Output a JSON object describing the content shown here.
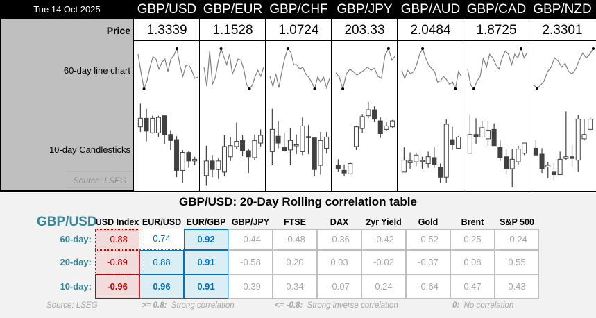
{
  "header": {
    "date": "Tue 14 Oct 2025"
  },
  "row_labels": {
    "price": "Price",
    "line_chart": "60-day line chart",
    "candles": "10-day Candlesticks",
    "source": "Source: LSEG"
  },
  "pairs": [
    {
      "name": "GBP/USD",
      "price": "1.3339",
      "line": [
        86,
        40,
        0,
        20,
        54,
        80,
        74,
        49,
        66,
        74,
        43,
        74,
        83,
        100,
        60,
        31,
        57,
        60,
        46,
        26,
        29
      ],
      "candles": [
        [
          71,
          98,
          65,
          81
        ],
        [
          81,
          92,
          54,
          66
        ],
        [
          64,
          84,
          63,
          81
        ],
        [
          64,
          84,
          59,
          82
        ],
        [
          84,
          84,
          51,
          62
        ],
        [
          62,
          67,
          44,
          55
        ],
        [
          56,
          60,
          12,
          20
        ],
        [
          20,
          44,
          5,
          41
        ],
        [
          41,
          43,
          23,
          31
        ],
        [
          31,
          36,
          26,
          33
        ]
      ]
    },
    {
      "name": "GBP/EUR",
      "price": "1.1528",
      "line": [
        54,
        6,
        94,
        11,
        29,
        69,
        100,
        80,
        60,
        86,
        37,
        54,
        74,
        71,
        49,
        11,
        0,
        9,
        31,
        46,
        31,
        54
      ],
      "candles": [
        [
          14,
          49,
          2,
          31
        ],
        [
          31,
          38,
          12,
          21
        ],
        [
          21,
          34,
          10,
          31
        ],
        [
          18,
          61,
          13,
          48
        ],
        [
          36,
          59,
          31,
          49
        ],
        [
          48,
          76,
          45,
          54
        ],
        [
          55,
          61,
          37,
          43
        ],
        [
          43,
          45,
          17,
          36
        ],
        [
          35,
          62,
          32,
          55
        ],
        [
          52,
          68,
          48,
          61
        ]
      ]
    },
    {
      "name": "GBP/CHF",
      "price": "1.0724",
      "line": [
        31,
        6,
        37,
        3,
        43,
        77,
        100,
        91,
        60,
        60,
        49,
        54,
        37,
        29,
        17,
        0,
        29,
        17,
        29,
        3,
        26
      ],
      "candles": [
        [
          42,
          92,
          26,
          68
        ],
        [
          60,
          78,
          46,
          52
        ],
        [
          47,
          64,
          42,
          43
        ],
        [
          44,
          70,
          26,
          55
        ],
        [
          49,
          62,
          39,
          50
        ],
        [
          42,
          82,
          38,
          72
        ],
        [
          59.5,
          73,
          39,
          59
        ],
        [
          58,
          58,
          13,
          21
        ],
        [
          26,
          65,
          15,
          55
        ],
        [
          46,
          65,
          40,
          59
        ]
      ]
    },
    {
      "name": "GBP/JPY",
      "price": "203.33",
      "line": [
        40,
        29,
        0,
        37,
        49,
        43,
        34,
        40,
        46,
        54,
        46,
        51,
        31,
        26,
        83,
        100,
        71,
        83
      ],
      "candles": [
        [
          26,
          33,
          18,
          22
        ],
        [
          20,
          27,
          13,
          17
        ],
        [
          16,
          29,
          15,
          28
        ],
        [
          48,
          72,
          44,
          71
        ],
        [
          69,
          86,
          64,
          83
        ],
        [
          84,
          100,
          81,
          91
        ],
        [
          91,
          95,
          77,
          80
        ],
        [
          78,
          82,
          58,
          63
        ],
        [
          68,
          77,
          66,
          72
        ],
        [
          71,
          79,
          70,
          78
        ]
      ]
    },
    {
      "name": "GBP/AUD",
      "price": "2.0484",
      "line": [
        46,
        26,
        46,
        37,
        43,
        60,
        86,
        100,
        77,
        60,
        51,
        43,
        17,
        20,
        31,
        23,
        11,
        17,
        0,
        43,
        31
      ],
      "candles": [
        [
          18,
          47,
          18,
          32
        ],
        [
          29,
          41,
          22,
          31
        ],
        [
          30,
          41,
          25,
          38
        ],
        [
          31,
          36,
          22,
          31.5
        ],
        [
          28,
          42,
          23,
          36
        ],
        [
          35,
          47,
          23,
          27
        ],
        [
          24,
          28,
          5,
          12
        ],
        [
          12,
          80,
          5,
          74
        ],
        [
          56,
          71,
          44,
          50
        ],
        [
          46,
          60,
          45,
          59
        ]
      ]
    },
    {
      "name": "GBP/CAD",
      "price": "1.8725",
      "line": [
        49,
        9,
        0,
        20,
        31,
        77,
        54,
        86,
        77,
        60,
        49,
        77,
        94,
        86,
        60,
        86,
        77,
        100,
        77,
        91
      ],
      "candles": [
        [
          40,
          86,
          40,
          62
        ],
        [
          62,
          81,
          51,
          59
        ],
        [
          59,
          78,
          59,
          70
        ],
        [
          57,
          78,
          49,
          67
        ],
        [
          68,
          75,
          49,
          49
        ],
        [
          47,
          55,
          31,
          35
        ],
        [
          36,
          45,
          15,
          22
        ],
        [
          22,
          45,
          0,
          33
        ],
        [
          30,
          49,
          27,
          45
        ],
        [
          40,
          52,
          38,
          52
        ]
      ]
    },
    {
      "name": "GBP/NZD",
      "price": "2.3301",
      "line": [
        11,
        0,
        9,
        20,
        43,
        54,
        77,
        69,
        54,
        63,
        43,
        37,
        49,
        71,
        89,
        77,
        86,
        100
      ],
      "candles": [
        [
          46,
          55,
          38,
          38
        ],
        [
          39,
          46,
          17,
          22
        ],
        [
          24,
          30,
          11,
          26
        ],
        [
          18,
          30,
          9,
          15
        ],
        [
          15,
          42,
          15,
          33
        ],
        [
          34,
          89,
          32,
          36
        ],
        [
          36,
          50,
          24,
          34
        ],
        [
          32,
          85,
          18,
          80
        ],
        [
          57,
          80,
          55,
          62
        ],
        [
          68,
          83,
          67,
          80
        ]
      ]
    }
  ],
  "correlation": {
    "title": "GBP/USD: 20-Day Rolling correlation table",
    "base": "GBP/USD",
    "columns": [
      "USD Index",
      "EUR/USD",
      "EUR/GBP",
      "GBP/JPY",
      "FTSE",
      "DAX",
      "2yr Yield",
      "Gold",
      "Brent",
      "S&P 500"
    ],
    "rows": [
      {
        "label": "60-day:",
        "values": [
          "-0.88",
          "0.74",
          "0.92",
          "-0.44",
          "-0.48",
          "-0.36",
          "-0.42",
          "-0.52",
          "0.25",
          "-0.24"
        ]
      },
      {
        "label": "20-day:",
        "values": [
          "-0.89",
          "0.88",
          "0.91",
          "-0.58",
          "0.20",
          "0.03",
          "-0.02",
          "-0.37",
          "0.08",
          "0.55"
        ]
      },
      {
        "label": "10-day:",
        "values": [
          "-0.96",
          "0.96",
          "0.91",
          "-0.39",
          "0.34",
          "-0.07",
          "0.24",
          "-0.64",
          "0.47",
          "0.43"
        ]
      }
    ],
    "footer": {
      "source": "Source: LSEG",
      "strong_key": ">= 0.8:",
      "strong": "Strong correlation",
      "inverse_key": "<= -0.8:",
      "inverse": "Strong inverse correlation",
      "none_key": "0:",
      "none": "No correlation"
    },
    "colors": {
      "teal": "#31869b",
      "red": "#c00000",
      "pink": "#f2dcdb",
      "blue": "#0070c0",
      "lightblue": "#daeef3",
      "grey": "#a6a6a6"
    }
  }
}
